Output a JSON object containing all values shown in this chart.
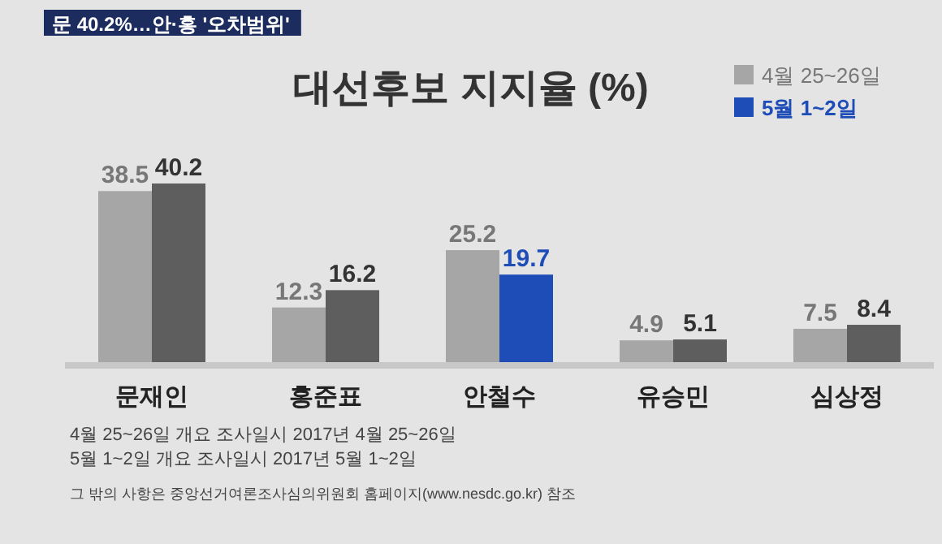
{
  "chart_data": {
    "type": "bar",
    "title": "대선후보 지지율 (%)",
    "subtitle": "문 40.2%…안·홍 '오차범위'",
    "categories": [
      "문재인",
      "홍준표",
      "안철수",
      "유승민",
      "심상정"
    ],
    "series": [
      {
        "name": "4월 25~26일",
        "color": "#a6a6a6",
        "values": [
          38.5,
          12.3,
          25.2,
          4.9,
          7.5
        ]
      },
      {
        "name": "5월 1~2일",
        "color": "#1f4db8",
        "colors": [
          "#5e5e5e",
          "#5e5e5e",
          "#1f4db8",
          "#5e5e5e",
          "#5e5e5e"
        ],
        "values": [
          40.2,
          16.2,
          19.7,
          5.1,
          8.4
        ]
      }
    ],
    "data_labels": true,
    "legend": "top right",
    "grid": false,
    "annotations": [
      "4월 25~26일 개요 조사일시 2017년 4월 25~26일",
      "5월 1~2일 개요 조사일시 2017년 5월 1~2일",
      "그 밖의 사항은 중앙선거여론조사심의위원회 홈페이지(www.nesdc.go.kr) 참조"
    ]
  }
}
